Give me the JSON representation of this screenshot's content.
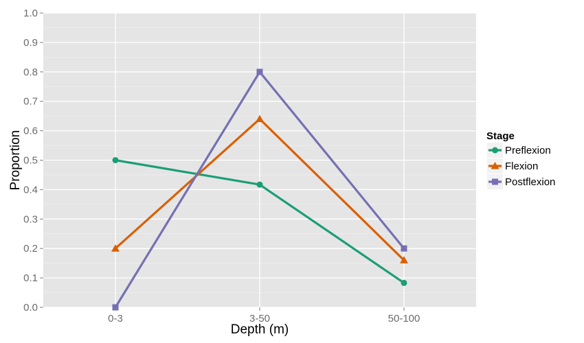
{
  "chart_data": {
    "type": "line",
    "title": "",
    "xlabel": "Depth (m)",
    "ylabel": "Proportion",
    "categories": [
      "0-3",
      "3-50",
      "50-100"
    ],
    "ylim": [
      0,
      1.0
    ],
    "yticks": [
      "0.0",
      "0.1",
      "0.2",
      "0.3",
      "0.4",
      "0.5",
      "0.6",
      "0.7",
      "0.8",
      "0.9",
      "1.0"
    ],
    "grid": true,
    "legend_position": "right",
    "legend_title": "Stage",
    "series": [
      {
        "name": "Preflexion",
        "values": [
          0.5,
          0.417,
          0.083
        ],
        "color": "#1b9e77",
        "marker": "circle"
      },
      {
        "name": "Flexion",
        "values": [
          0.2,
          0.64,
          0.16
        ],
        "color": "#d95f02",
        "marker": "triangle"
      },
      {
        "name": "Postflexion",
        "values": [
          0.0,
          0.8,
          0.2
        ],
        "color": "#7570b3",
        "marker": "square"
      }
    ]
  }
}
